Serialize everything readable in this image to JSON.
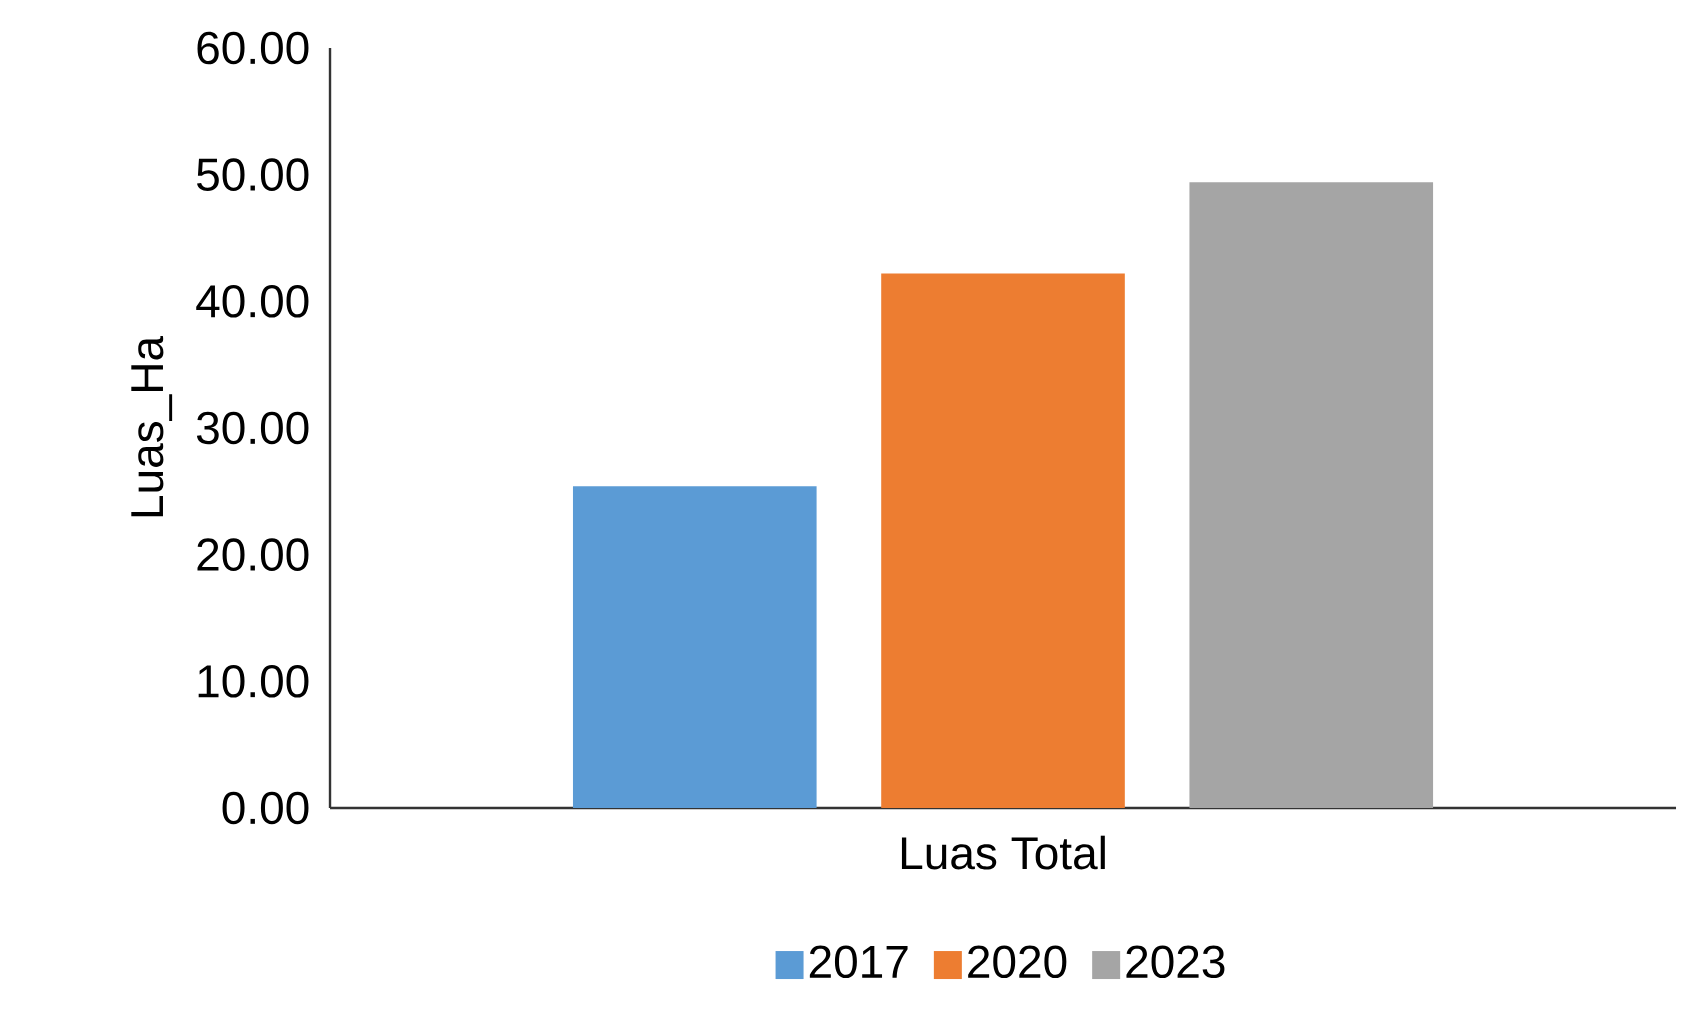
{
  "chart_data": {
    "type": "bar",
    "ylabel": "Luas_Ha",
    "categories": [
      "Luas Total"
    ],
    "series": [
      {
        "name": "2017",
        "color": "#5b9bd5",
        "values": [
          25.4
        ]
      },
      {
        "name": "2020",
        "color": "#ed7d31",
        "values": [
          42.2
        ]
      },
      {
        "name": "2023",
        "color": "#a5a5a5",
        "values": [
          49.4
        ]
      }
    ],
    "ylim": [
      0,
      60
    ],
    "yticks": [
      {
        "value": 0,
        "label": "0.00"
      },
      {
        "value": 10,
        "label": "10.00"
      },
      {
        "value": 20,
        "label": "20.00"
      },
      {
        "value": 30,
        "label": "30.00"
      },
      {
        "value": 40,
        "label": "40.00"
      },
      {
        "value": 50,
        "label": "50.00"
      },
      {
        "value": 60,
        "label": "60.00"
      }
    ],
    "grid": false,
    "legend": "bottom"
  }
}
